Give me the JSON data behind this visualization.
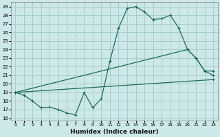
{
  "xlabel": "Humidex (Indice chaleur)",
  "ylabel": "",
  "bg_color": "#cce8e8",
  "line_color": "#1a6b5a",
  "grid_color": "#aacccc",
  "xlim": [
    -0.5,
    23.5
  ],
  "ylim": [
    15.7,
    29.5
  ],
  "xticks": [
    0,
    1,
    2,
    3,
    4,
    5,
    6,
    7,
    8,
    9,
    10,
    11,
    12,
    13,
    14,
    15,
    16,
    17,
    18,
    19,
    20,
    21,
    22,
    23
  ],
  "yticks": [
    16,
    17,
    18,
    19,
    20,
    21,
    22,
    23,
    24,
    25,
    26,
    27,
    28,
    29
  ],
  "line1_x": [
    0,
    1,
    2,
    3,
    4,
    5,
    6,
    7,
    8,
    9,
    10,
    11,
    12,
    13,
    14,
    15,
    16,
    17,
    18,
    19,
    20,
    21,
    22,
    23
  ],
  "line1_y": [
    19.0,
    18.7,
    18.0,
    17.2,
    17.3,
    17.0,
    16.6,
    16.4,
    19.0,
    17.2,
    18.3,
    22.7,
    26.5,
    28.8,
    29.0,
    28.4,
    27.5,
    27.6,
    28.0,
    26.5,
    24.0,
    23.0,
    21.5,
    21.0
  ],
  "line2_x": [
    0,
    20,
    21,
    22,
    23
  ],
  "line2_y": [
    19.0,
    24.0,
    23.0,
    21.5,
    21.5
  ],
  "line3_x": [
    0,
    23
  ],
  "line3_y": [
    19.0,
    20.5
  ]
}
